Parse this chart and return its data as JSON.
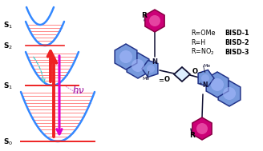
{
  "bg_color": "#ffffff",
  "blue_curve": "#3388ff",
  "red_line": "#ee2222",
  "red_fill": "#ff5555",
  "magenta_arrow": "#cc00cc",
  "cyan_dashed": "#44cccc",
  "ring_fill": "#7799dd",
  "ring_edge": "#223388",
  "ring_glow": "#aabbff",
  "mag_fill": "#cc0077",
  "mag_edge": "#880044",
  "mag_glow": "#ff88cc",
  "dark_bond": "#111133",
  "s0_label": "S$_0$",
  "s1_label": "S$_1$",
  "s2_label": "S$_2$",
  "s3_label": "S$_1$",
  "hv_label": "$h\\nu$",
  "r_ome": "R=OMe",
  "bisd1": "BISD-1",
  "r_h": "R=H",
  "bisd2": "BISD-2",
  "r_no2": "R=NO$_2$",
  "bisd3": "BISD-3"
}
